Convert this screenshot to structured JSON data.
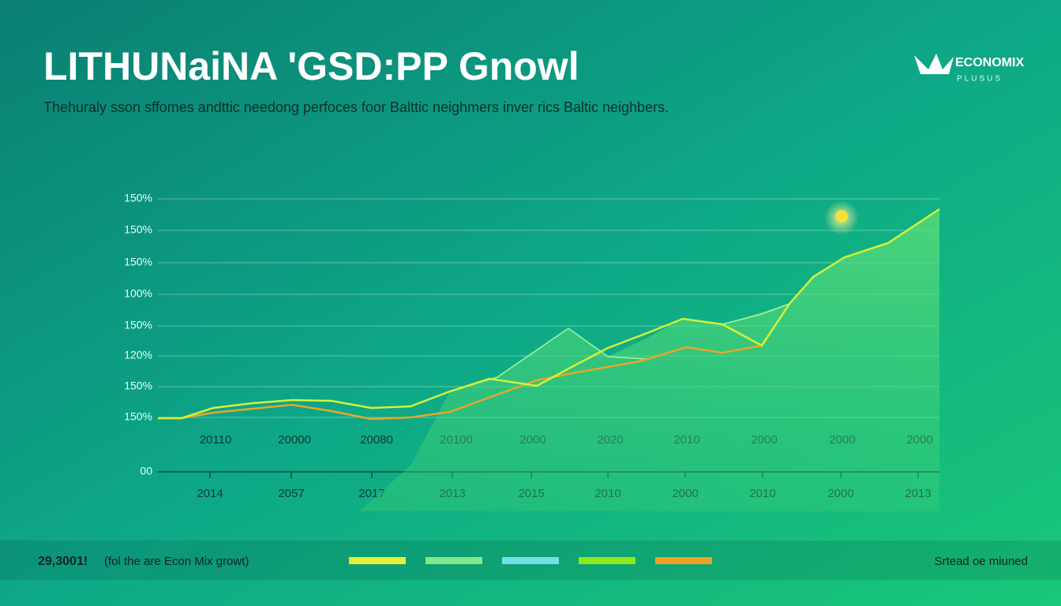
{
  "header": {
    "title": "LITHUNaiNA 'GSD:PP Gnowl",
    "subtitle": "Thehuraly sson sffomes andttic needong perfoces foor Balttic neighmers inver rics Baltic neighbers."
  },
  "logo": {
    "name": "ECONOMIX",
    "tagline": "PLUSUS"
  },
  "axis": {
    "y_labels": [
      "150%",
      "150%",
      "150%",
      "100%",
      "150%",
      "120%",
      "150%",
      "150%",
      "00"
    ],
    "x_labels_upper": [
      "20110",
      "20000",
      "20080",
      "20100",
      "2000",
      "2020",
      "2010",
      "2000",
      "2000",
      "2000"
    ],
    "x_labels_lower": [
      "2014",
      "2057",
      "2017",
      "2013",
      "2015",
      "2010",
      "2000",
      "2010",
      "2000",
      "2013"
    ]
  },
  "footer": {
    "figure": "29,3001!",
    "note": "(fol the are Econ Mix growt)",
    "source": "Srtead oe miuned"
  }
}
